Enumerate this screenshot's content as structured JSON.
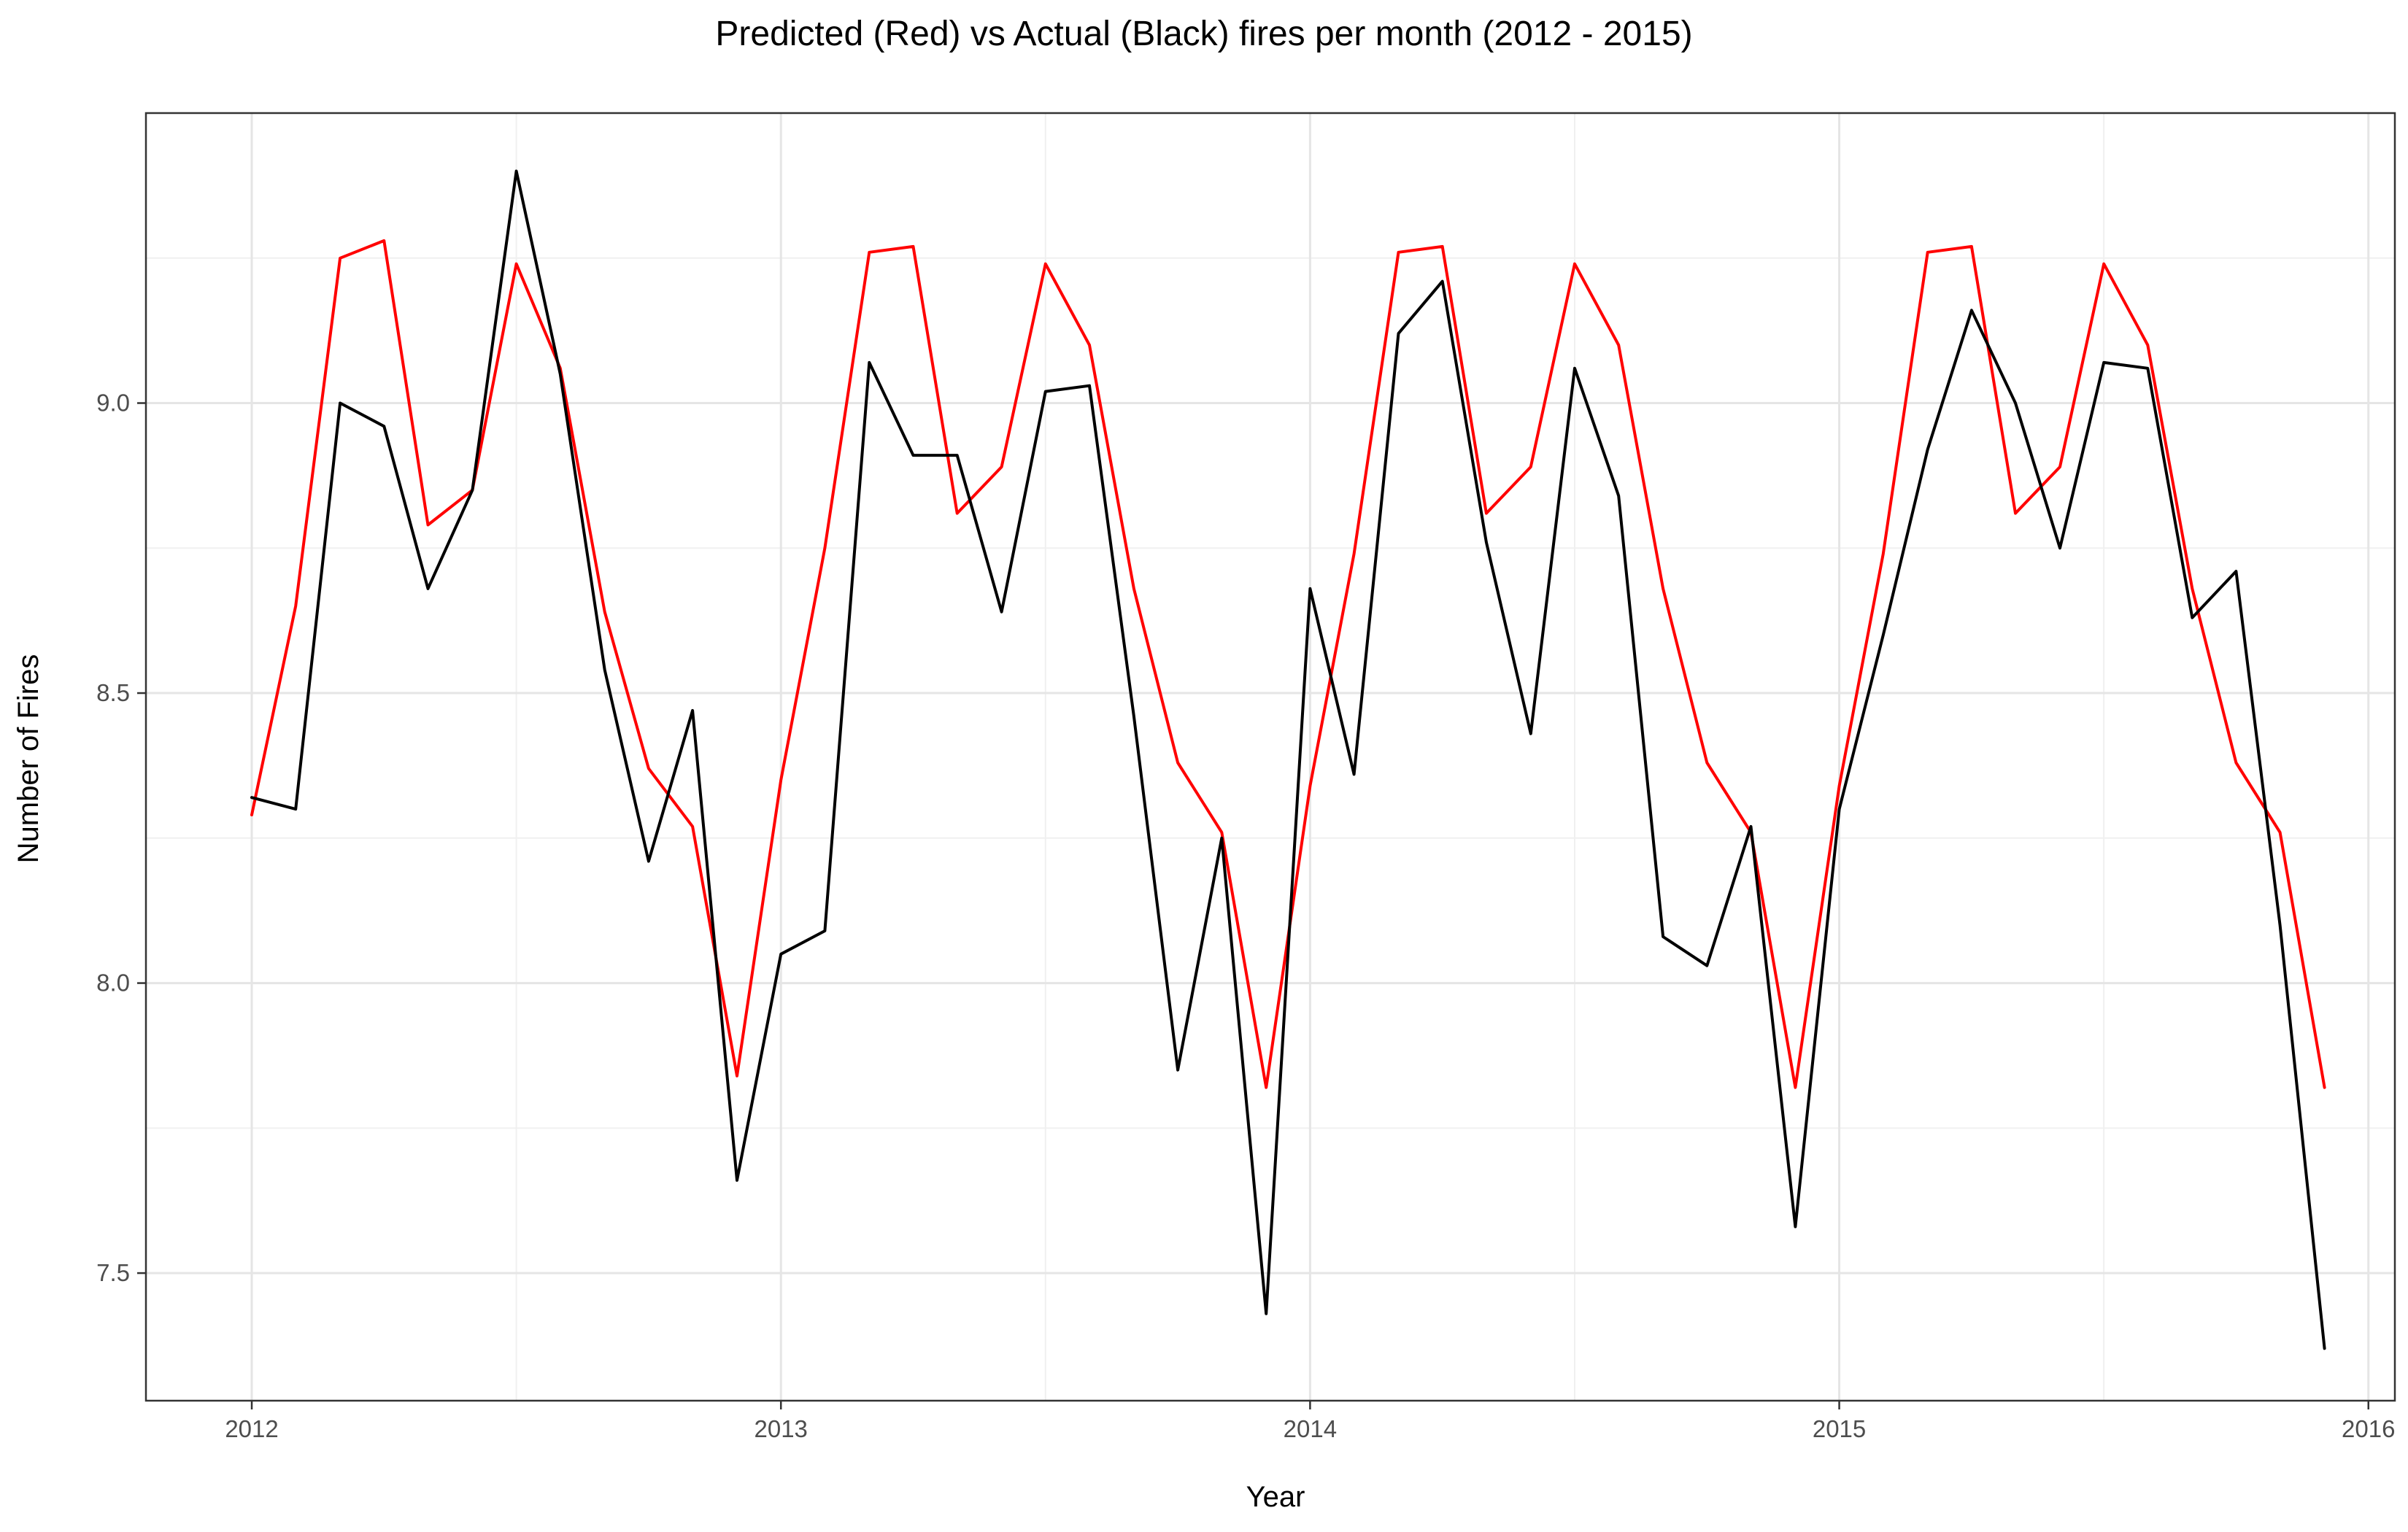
{
  "chart_data": {
    "type": "line",
    "title": "Predicted (Red) vs Actual (Black) fires per month (2012 - 2015)",
    "xlabel": "Year",
    "ylabel": "Number of Fires",
    "xlim": [
      2011.8,
      2016.05
    ],
    "ylim": [
      7.28,
      9.5
    ],
    "x_ticks": [
      2012,
      2013,
      2014,
      2015,
      2016
    ],
    "x_tick_labels": [
      "2012",
      "2013",
      "2014",
      "2015",
      "2016"
    ],
    "y_ticks": [
      7.5,
      8.0,
      8.5,
      9.0
    ],
    "y_tick_labels": [
      "7.5",
      "8.0",
      "8.5",
      "9.0"
    ],
    "grid": true,
    "legend": "none",
    "x": [
      2012.0,
      2012.083,
      2012.167,
      2012.25,
      2012.333,
      2012.417,
      2012.5,
      2012.583,
      2012.667,
      2012.75,
      2012.833,
      2012.917,
      2013.0,
      2013.083,
      2013.167,
      2013.25,
      2013.333,
      2013.417,
      2013.5,
      2013.583,
      2013.667,
      2013.75,
      2013.833,
      2013.917,
      2014.0,
      2014.083,
      2014.167,
      2014.25,
      2014.333,
      2014.417,
      2014.5,
      2014.583,
      2014.667,
      2014.75,
      2014.833,
      2014.917,
      2015.0,
      2015.083,
      2015.167,
      2015.25,
      2015.333,
      2015.417,
      2015.5,
      2015.583,
      2015.667,
      2015.75,
      2015.833,
      2015.917
    ],
    "series": [
      {
        "color": "#ff0000",
        "values": [
          8.29,
          8.65,
          9.25,
          9.28,
          8.79,
          8.85,
          9.24,
          9.06,
          8.64,
          8.37,
          8.27,
          7.84,
          8.35,
          8.75,
          9.26,
          9.27,
          8.81,
          8.89,
          9.24,
          9.1,
          8.68,
          8.38,
          8.26,
          7.82,
          8.34,
          8.74,
          9.26,
          9.27,
          8.81,
          8.89,
          9.24,
          9.1,
          8.68,
          8.38,
          8.26,
          7.82,
          8.34,
          8.74,
          9.26,
          9.27,
          8.81,
          8.89,
          9.24,
          9.1,
          8.68,
          8.38,
          8.26,
          7.82
        ]
      },
      {
        "color": "#000000",
        "values": [
          8.32,
          8.3,
          9.0,
          8.96,
          8.68,
          8.85,
          9.4,
          9.05,
          8.54,
          8.21,
          8.47,
          7.66,
          8.05,
          8.09,
          9.07,
          8.91,
          8.91,
          8.64,
          9.02,
          9.03,
          8.46,
          7.85,
          8.25,
          7.43,
          8.68,
          8.36,
          9.12,
          9.21,
          8.76,
          8.43,
          9.06,
          8.84,
          8.08,
          8.03,
          8.27,
          7.58,
          8.3,
          8.6,
          8.92,
          9.16,
          9.0,
          8.75,
          9.07,
          9.06,
          8.63,
          8.71,
          8.1,
          7.37
        ]
      }
    ]
  }
}
